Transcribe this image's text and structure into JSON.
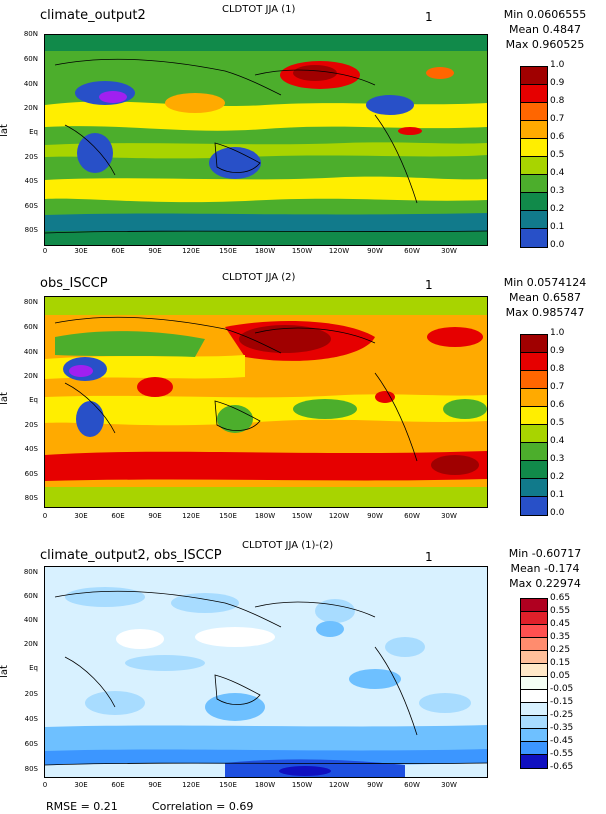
{
  "panels": [
    {
      "left_title": "climate_output2",
      "center_title": "CLDTOT JJA (1)",
      "right_marker": "1",
      "stats": {
        "min": "Min 0.0606555",
        "mean": "Mean 0.4847",
        "max": "Max 0.960525"
      },
      "ylabel": "lat",
      "colorbar": {
        "labels": [
          "1.0",
          "0.9",
          "0.8",
          "0.7",
          "0.6",
          "0.5",
          "0.4",
          "0.3",
          "0.2",
          "0.1",
          "0.0"
        ],
        "colors": [
          "#a00000",
          "#e60000",
          "#ff6600",
          "#ffaa00",
          "#ffee00",
          "#a8d400",
          "#4cae2c",
          "#118a4a",
          "#117a8b",
          "#2850c8",
          "#a020f0"
        ]
      }
    },
    {
      "left_title": "obs_ISCCP",
      "center_title": "CLDTOT JJA (2)",
      "right_marker": "1",
      "stats": {
        "min": "Min 0.0574124",
        "mean": "Mean 0.6587",
        "max": "Max 0.985747"
      },
      "ylabel": "lat",
      "colorbar": {
        "labels": [
          "1.0",
          "0.9",
          "0.8",
          "0.7",
          "0.6",
          "0.5",
          "0.4",
          "0.3",
          "0.2",
          "0.1",
          "0.0"
        ],
        "colors": [
          "#a00000",
          "#e60000",
          "#ff6600",
          "#ffaa00",
          "#ffee00",
          "#a8d400",
          "#4cae2c",
          "#118a4a",
          "#117a8b",
          "#2850c8",
          "#a020f0"
        ]
      }
    },
    {
      "left_title": "climate_output2, obs_ISCCP",
      "center_title": "CLDTOT JJA (1)-(2)",
      "right_marker": "1",
      "stats": {
        "min": "Min -0.60717",
        "mean": "Mean -0.174",
        "max": "Max 0.22974"
      },
      "ylabel": "lat",
      "colorbar": {
        "labels": [
          "0.65",
          "0.55",
          "0.45",
          "0.35",
          "0.25",
          "0.15",
          "0.05",
          "-0.05",
          "-0.15",
          "-0.25",
          "-0.35",
          "-0.45",
          "-0.55",
          "-0.65"
        ],
        "colors": [
          "#b00020",
          "#e0202a",
          "#ff5050",
          "#ff8c6e",
          "#ffbf9a",
          "#ffe9c8",
          "#f4fff4",
          "#ffffff",
          "#d8f1ff",
          "#a8dcff",
          "#6ec0ff",
          "#3c96ff",
          "#1e50e0",
          "#1010c0"
        ]
      }
    }
  ],
  "axes": {
    "lat_ticks": [
      "80N",
      "60N",
      "40N",
      "20N",
      "Eq",
      "20S",
      "40S",
      "60S",
      "80S"
    ],
    "lon_ticks": [
      "0",
      "30E",
      "60E",
      "90E",
      "120E",
      "150E",
      "180W",
      "150W",
      "120W",
      "90W",
      "60W",
      "30W"
    ]
  },
  "footer": {
    "rmse": "RMSE = 0.21",
    "correlation": "Correlation = 0.69"
  }
}
